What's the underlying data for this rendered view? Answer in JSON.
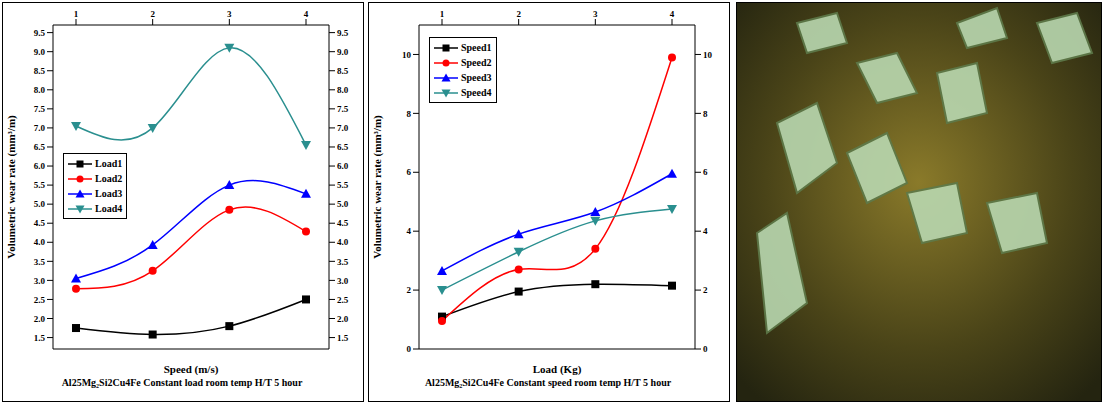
{
  "chart_data": [
    {
      "type": "line",
      "title": "Al25Mg₂Si2Cu4Fe Constant load room temp H/T 5 hour",
      "x_label": "Speed (m/s)",
      "y_label": "Volumetric wear rate (mm³/m)",
      "x": [
        1,
        2,
        3,
        4
      ],
      "xlim": [
        0.7,
        4.3
      ],
      "xticks": [
        1,
        2,
        3,
        4
      ],
      "ylim": [
        1.2,
        9.7
      ],
      "yticks": [
        1.5,
        {
          "value": 2,
          "label": "2.0"
        },
        2.5,
        {
          "value": 3,
          "label": "3.0"
        },
        3.5,
        {
          "value": 4,
          "label": "4.0"
        },
        4.5,
        {
          "value": 5,
          "label": "5.0"
        },
        5.5,
        {
          "value": 6,
          "label": "6.0"
        },
        6.5,
        {
          "value": 7,
          "label": "7.0"
        },
        7.5,
        {
          "value": 8,
          "label": "8.0"
        },
        8.5,
        {
          "value": 9,
          "label": "9.0"
        },
        9.5
      ],
      "legend": "center left",
      "series": [
        {
          "name": "Load1",
          "color": "#000000",
          "marker": "square",
          "values": [
            1.75,
            1.58,
            1.8,
            2.5
          ]
        },
        {
          "name": "Load2",
          "color": "#ff0000",
          "marker": "circle",
          "values": [
            2.78,
            3.25,
            4.85,
            4.28
          ]
        },
        {
          "name": "Load3",
          "color": "#0000ff",
          "marker": "triangle-up",
          "values": [
            3.05,
            3.93,
            5.5,
            5.27
          ]
        },
        {
          "name": "Load4",
          "color": "#2a8f8f",
          "marker": "triangle-down",
          "values": [
            7.05,
            7.0,
            9.1,
            6.55
          ]
        }
      ]
    },
    {
      "type": "line",
      "title": "Al25Mg₂Si2Cu4Fe Constant speed room temp H/T 5 hour",
      "x_label": "Load (Kg)",
      "y_label": "Volumetric wear rate (mm³/m)",
      "x": [
        1,
        2,
        3,
        4
      ],
      "xlim": [
        0.7,
        4.3
      ],
      "xticks": [
        1,
        2,
        3,
        4
      ],
      "ylim": [
        0,
        11
      ],
      "yticks": [
        0,
        2,
        4,
        6,
        8,
        10
      ],
      "legend": "upper left",
      "series": [
        {
          "name": "Speed1",
          "color": "#000000",
          "marker": "square",
          "values": [
            1.1,
            1.95,
            2.2,
            2.15
          ]
        },
        {
          "name": "Speed2",
          "color": "#ff0000",
          "marker": "circle",
          "values": [
            0.95,
            2.7,
            3.4,
            9.9
          ]
        },
        {
          "name": "Speed3",
          "color": "#0000ff",
          "marker": "triangle-up",
          "values": [
            2.65,
            3.9,
            4.65,
            5.95
          ]
        },
        {
          "name": "Speed4",
          "color": "#2a8f8f",
          "marker": "triangle-down",
          "values": [
            2.0,
            3.3,
            4.35,
            4.75
          ]
        }
      ]
    }
  ]
}
